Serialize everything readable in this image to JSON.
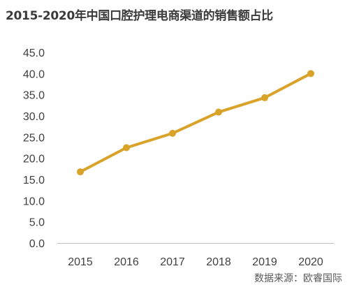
{
  "title": "2015-2020年中国口腔护理电商渠道的销售额占比",
  "source": "数据来源：欧睿国际",
  "colors": {
    "line": "#D9A32A",
    "axis": "#bfbfbf",
    "text": "#404040"
  },
  "chart_data": {
    "type": "line",
    "title": "2015-2020年中国口腔护理电商渠道的销售额占比",
    "xlabel": "",
    "ylabel": "",
    "categories": [
      "2015",
      "2016",
      "2017",
      "2018",
      "2019",
      "2020"
    ],
    "series": [
      {
        "values": [
          16.8,
          22.5,
          25.9,
          30.9,
          34.3,
          40.0
        ]
      }
    ],
    "ylim": [
      0,
      45
    ],
    "yticks": [
      "0.0",
      "5.0",
      "10.0",
      "15.0",
      "20.0",
      "25.0",
      "30.0",
      "35.0",
      "40.0",
      "45.0"
    ],
    "grid": false,
    "legend": "none"
  }
}
